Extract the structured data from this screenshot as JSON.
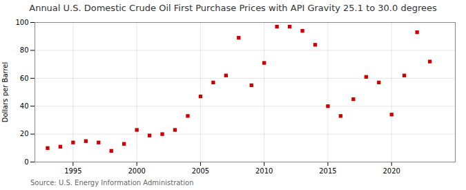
{
  "chart_data": {
    "type": "scatter",
    "title": "Annual U.S. Domestic Crude Oil First Purchase Prices with API Gravity 25.1 to 30.0 degrees",
    "ylabel": "Dollars per Barrel",
    "annotations": [
      "Source: U.S. Energy Information Administration"
    ],
    "x": [
      1993,
      1994,
      1995,
      1996,
      1997,
      1998,
      1999,
      2000,
      2001,
      2002,
      2003,
      2004,
      2005,
      2006,
      2007,
      2008,
      2009,
      2010,
      2011,
      2012,
      2013,
      2014,
      2015,
      2016,
      2017,
      2018,
      2019,
      2020,
      2021,
      2022,
      2023
    ],
    "values": [
      10,
      11,
      14,
      15,
      14,
      8,
      13,
      23,
      19,
      20,
      23,
      33,
      47,
      57,
      62,
      89,
      55,
      71,
      97,
      97,
      94,
      84,
      40,
      33,
      45,
      61,
      57,
      34,
      62,
      93,
      72
    ],
    "color": "#cc0000",
    "marker": "square",
    "xlim": [
      1992,
      2025
    ],
    "ylim": [
      0,
      100
    ],
    "xticks": [
      1995,
      2000,
      2005,
      2010,
      2015,
      2020
    ],
    "yticks": [
      0,
      20,
      40,
      60,
      80,
      100
    ],
    "grid": true
  }
}
